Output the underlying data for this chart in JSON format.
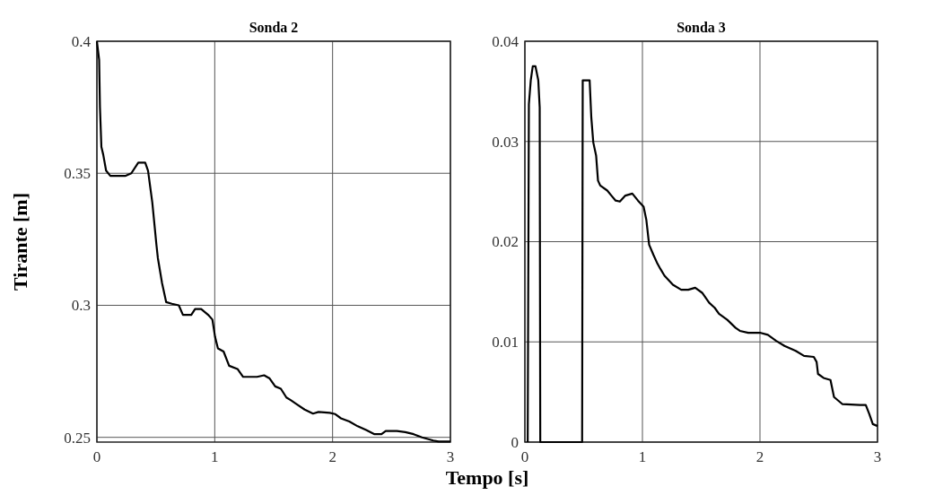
{
  "chart_data": [
    {
      "type": "line",
      "title": "Sonda 2",
      "ylabel": "Tirante [m]",
      "xlabel": "Tempo [s]",
      "xlim": [
        0,
        3
      ],
      "xticks": [
        0,
        1,
        2,
        3
      ],
      "ylim": [
        0.2482,
        0.4
      ],
      "yticks": [
        0.25,
        0.3,
        0.35,
        0.4
      ],
      "grid": true,
      "series": [
        {
          "color": "#000000",
          "x": [
            0,
            0.019,
            0.026,
            0.038,
            0.054,
            0.078,
            0.114,
            0.24,
            0.292,
            0.351,
            0.41,
            0.434,
            0.47,
            0.505,
            0.517,
            0.553,
            0.588,
            0.636,
            0.695,
            0.73,
            0.801,
            0.833,
            0.885,
            0.944,
            0.98,
            1.003,
            1.027,
            1.075,
            1.122,
            1.193,
            1.241,
            1.359,
            1.419,
            1.466,
            1.513,
            1.561,
            1.608,
            1.644,
            1.691,
            1.763,
            1.834,
            1.881,
            1.976,
            2.023,
            2.071,
            2.142,
            2.213,
            2.285,
            2.356,
            2.415,
            2.451,
            2.546,
            2.617,
            2.688,
            2.759,
            2.854,
            2.9,
            3
          ],
          "values": [
            0.4,
            0.393,
            0.375,
            0.36,
            0.357,
            0.351,
            0.349,
            0.349,
            0.35,
            0.354,
            0.354,
            0.351,
            0.339,
            0.323,
            0.318,
            0.3084,
            0.3012,
            0.3006,
            0.3,
            0.2964,
            0.2964,
            0.2986,
            0.2986,
            0.2964,
            0.2946,
            0.288,
            0.2837,
            0.2825,
            0.2771,
            0.2759,
            0.2729,
            0.2729,
            0.2735,
            0.2723,
            0.2693,
            0.2684,
            0.2651,
            0.2641,
            0.2627,
            0.2605,
            0.259,
            0.2596,
            0.2593,
            0.2588,
            0.2572,
            0.256,
            0.2542,
            0.2528,
            0.2512,
            0.2512,
            0.2524,
            0.2524,
            0.252,
            0.2512,
            0.25,
            0.2488,
            0.2484,
            0.2484
          ]
        }
      ]
    },
    {
      "type": "line",
      "title": "Sonda 3",
      "xlim": [
        0,
        3
      ],
      "xticks": [
        0,
        1,
        2,
        3
      ],
      "ylim": [
        0,
        0.04
      ],
      "yticks": [
        0,
        0.01,
        0.02,
        0.03,
        0.04
      ],
      "grid": true,
      "series": [
        {
          "color": "#000000",
          "x": [
            0.024,
            0.034,
            0.05,
            0.067,
            0.09,
            0.114,
            0.126,
            0.131,
            0.487,
            0.492,
            0.551,
            0.565,
            0.582,
            0.606,
            0.622,
            0.641,
            0.701,
            0.736,
            0.772,
            0.808,
            0.855,
            0.914,
            0.962,
            1.01,
            1.033,
            1.057,
            1.093,
            1.128,
            1.152,
            1.188,
            1.259,
            1.33,
            1.39,
            1.449,
            1.508,
            1.568,
            1.615,
            1.651,
            1.722,
            1.793,
            1.829,
            1.9,
            2.007,
            2.067,
            2.138,
            2.209,
            2.304,
            2.375,
            2.458,
            2.482,
            2.494,
            2.541,
            2.6,
            2.63,
            2.7,
            2.85,
            2.9,
            2.93,
            2.96,
            3
          ],
          "values": [
            0,
            0.0337,
            0.0361,
            0.0375,
            0.0375,
            0.0361,
            0.0334,
            0,
            0,
            0.0361,
            0.0361,
            0.0324,
            0.0299,
            0.0286,
            0.0261,
            0.0256,
            0.0251,
            0.0246,
            0.0241,
            0.024,
            0.0246,
            0.0248,
            0.0241,
            0.0235,
            0.0222,
            0.0197,
            0.0187,
            0.0178,
            0.0173,
            0.0166,
            0.0157,
            0.0152,
            0.0152,
            0.0154,
            0.0149,
            0.0139,
            0.0134,
            0.0128,
            0.0122,
            0.0114,
            0.0111,
            0.0109,
            0.0109,
            0.0107,
            0.0101,
            0.0096,
            0.0091,
            0.0086,
            0.0085,
            0.008,
            0.0068,
            0.0064,
            0.0062,
            0.0045,
            0.0038,
            0.0037,
            0.0037,
            0.0028,
            0.0018,
            0.0016
          ]
        }
      ]
    }
  ]
}
